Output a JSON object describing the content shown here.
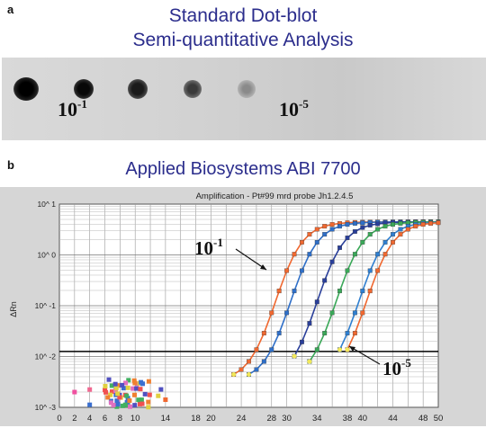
{
  "panel_a": {
    "letter": "a",
    "title_line1": "Standard Dot-blot",
    "title_line2": "Semi-quantitative Analysis",
    "label_left_base": "10",
    "label_left_exp": "-1",
    "label_right_base": "10",
    "label_right_exp": "-5",
    "dot_intensities": [
      1.0,
      0.9,
      0.75,
      0.55,
      0.3
    ]
  },
  "panel_b": {
    "letter": "b",
    "title": "Applied Biosystems  ABI 7700",
    "plot_header": "Amplification - Pt#99 mrd    probe Jh1.2.4.5",
    "y_axis_title": "ΔRn",
    "annot_top_base": "10",
    "annot_top_exp": "-1",
    "annot_bottom_base": "10",
    "annot_bottom_exp": "-5"
  },
  "chart_data": {
    "type": "line",
    "xlim": [
      0,
      50
    ],
    "ylim_log10": [
      -3,
      1
    ],
    "y_scale": "log",
    "x_ticks": [
      "0",
      "2",
      "4",
      "6",
      "8",
      "10",
      "14",
      "18",
      "20",
      "24",
      "28",
      "30",
      "34",
      "38",
      "40",
      "44",
      "48",
      "50"
    ],
    "y_ticks": [
      "10^-3",
      "10^-2",
      "10^-1",
      "10^0",
      "10^1"
    ],
    "threshold_log10": -1.9,
    "grid": true,
    "series": [
      {
        "color": "#f06830",
        "start_cycle": 23,
        "midpoint": 28.5,
        "values_at": "sigmoid"
      },
      {
        "color": "#2f6fc8",
        "start_cycle": 25,
        "midpoint": 30.5,
        "values_at": "sigmoid"
      },
      {
        "color": "#2a3f9a",
        "start_cycle": 31,
        "midpoint": 34.0,
        "values_at": "sigmoid"
      },
      {
        "color": "#3aa858",
        "start_cycle": 33,
        "midpoint": 36.5,
        "values_at": "sigmoid"
      },
      {
        "color": "#2f7fd0",
        "start_cycle": 37,
        "midpoint": 39.5,
        "values_at": "sigmoid"
      },
      {
        "color": "#f06830",
        "start_cycle": 38,
        "midpoint": 40.5,
        "values_at": "sigmoid"
      }
    ]
  }
}
